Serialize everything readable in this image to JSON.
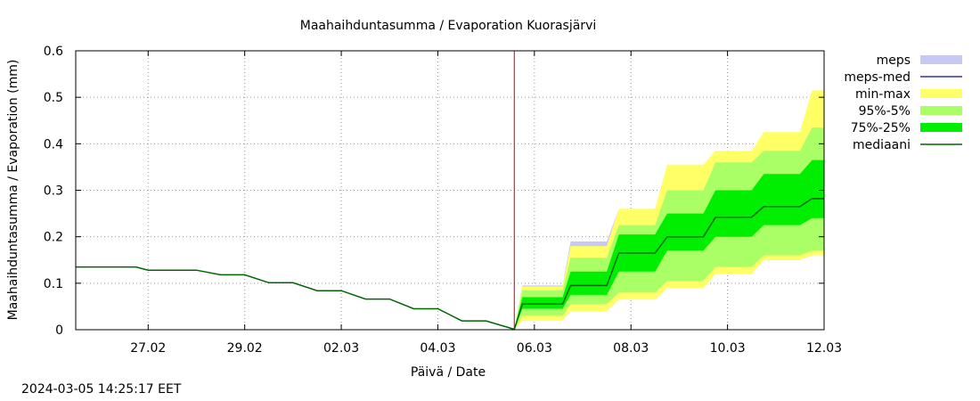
{
  "chart_data": {
    "type": "area",
    "title": "Maahaihduntasumma / Evaporation   Kuorasjärvi",
    "xlabel": "Päivä / Date",
    "ylabel": "Maahaihduntasumma / Evaporation (mm)",
    "xlim": [
      "2024-02-25T12:00",
      "2024-03-12T00:00"
    ],
    "ylim": [
      0,
      0.6
    ],
    "x_ticks": [
      "27.02",
      "29.02",
      "02.03",
      "04.03",
      "06.03",
      "08.03",
      "10.03",
      "12.03"
    ],
    "x_tick_dates": [
      "2024-02-27",
      "2024-02-29",
      "2024-03-02",
      "2024-03-04",
      "2024-03-06",
      "2024-03-08",
      "2024-03-10",
      "2024-03-12"
    ],
    "y_ticks": [
      "0",
      "0.1",
      "0.2",
      "0.3",
      "0.4",
      "0.5",
      "0.6"
    ],
    "grid": true,
    "legend_position": "right",
    "forecast_start": "2024-03-05T14:00",
    "colors": {
      "meps": "#c8c8f4",
      "meps_med": "#3333aa",
      "min_max": "#ffff66",
      "p95_5": "#aaff66",
      "p75_25": "#00ee00",
      "median": "#006600",
      "now_line": "#cc0000",
      "grid": "#999999"
    },
    "legend": [
      {
        "key": "meps",
        "label": "meps",
        "kind": "fill"
      },
      {
        "key": "meps_med",
        "label": "meps-med",
        "kind": "line"
      },
      {
        "key": "min_max",
        "label": "min-max",
        "kind": "fill"
      },
      {
        "key": "p95_5",
        "label": "95%-5%",
        "kind": "fill"
      },
      {
        "key": "p75_25",
        "label": "75%-25%",
        "kind": "fill"
      },
      {
        "key": "median",
        "label": "mediaani",
        "kind": "line"
      }
    ],
    "history": {
      "x": [
        "2024-02-25T12:00",
        "2024-02-26T18:00",
        "2024-02-27T00:00",
        "2024-02-28T00:00",
        "2024-02-28T12:00",
        "2024-02-29T00:00",
        "2024-02-29T12:00",
        "2024-03-01T00:00",
        "2024-03-01T12:00",
        "2024-03-02T00:00",
        "2024-03-02T12:00",
        "2024-03-03T00:00",
        "2024-03-03T12:00",
        "2024-03-04T00:00",
        "2024-03-04T12:00",
        "2024-03-05T00:00",
        "2024-03-05T14:00"
      ],
      "y": [
        0.135,
        0.135,
        0.128,
        0.128,
        0.118,
        0.118,
        0.101,
        0.101,
        0.084,
        0.084,
        0.066,
        0.066,
        0.045,
        0.045,
        0.019,
        0.019,
        0.001
      ]
    },
    "forecast": {
      "x": [
        "2024-03-05T14:00",
        "2024-03-05T18:00",
        "2024-03-06T14:00",
        "2024-03-06T18:00",
        "2024-03-07T12:00",
        "2024-03-07T18:00",
        "2024-03-08T12:00",
        "2024-03-08T18:00",
        "2024-03-09T12:00",
        "2024-03-09T18:00",
        "2024-03-10T12:00",
        "2024-03-10T18:00",
        "2024-03-11T12:00",
        "2024-03-11T18:00",
        "2024-03-12T00:00"
      ],
      "meps_upper": [
        0.001,
        0.095,
        0.095,
        0.19,
        0.19,
        0.26,
        0.26,
        0.35,
        0.35,
        0.38,
        0.38,
        0.42,
        0.42,
        0.51,
        0.51
      ],
      "min": [
        0.001,
        0.02,
        0.02,
        0.04,
        0.04,
        0.065,
        0.065,
        0.09,
        0.09,
        0.12,
        0.12,
        0.15,
        0.15,
        0.16,
        0.16
      ],
      "max": [
        0.001,
        0.093,
        0.093,
        0.18,
        0.18,
        0.26,
        0.26,
        0.355,
        0.355,
        0.385,
        0.385,
        0.425,
        0.425,
        0.515,
        0.515
      ],
      "p5": [
        0.001,
        0.03,
        0.03,
        0.055,
        0.055,
        0.08,
        0.08,
        0.105,
        0.105,
        0.135,
        0.135,
        0.16,
        0.16,
        0.17,
        0.17
      ],
      "p95": [
        0.001,
        0.085,
        0.085,
        0.155,
        0.155,
        0.225,
        0.225,
        0.3,
        0.3,
        0.36,
        0.36,
        0.385,
        0.385,
        0.435,
        0.435
      ],
      "p25": [
        0.001,
        0.045,
        0.045,
        0.075,
        0.075,
        0.125,
        0.125,
        0.17,
        0.17,
        0.2,
        0.2,
        0.225,
        0.225,
        0.24,
        0.24
      ],
      "p75": [
        0.001,
        0.07,
        0.07,
        0.125,
        0.125,
        0.205,
        0.205,
        0.25,
        0.25,
        0.3,
        0.3,
        0.335,
        0.335,
        0.365,
        0.365
      ],
      "median": [
        0.001,
        0.055,
        0.055,
        0.095,
        0.095,
        0.165,
        0.165,
        0.2,
        0.2,
        0.242,
        0.242,
        0.265,
        0.265,
        0.282,
        0.282
      ]
    }
  },
  "footer": {
    "timestamp": "2024-03-05 14:25:17 EET"
  }
}
